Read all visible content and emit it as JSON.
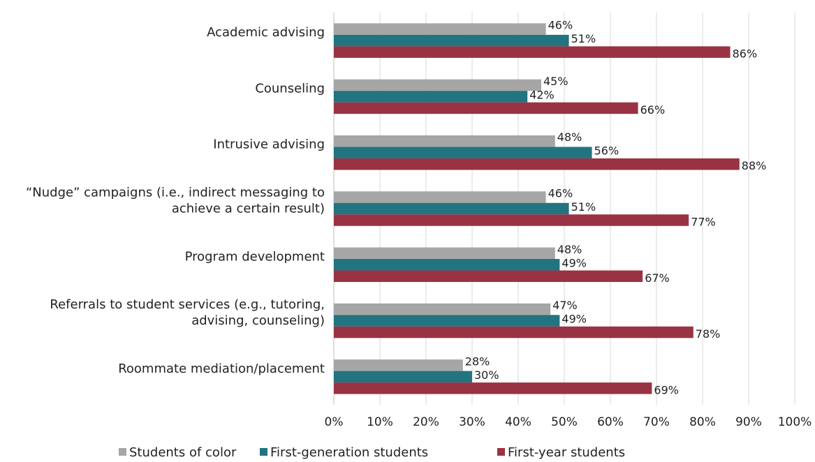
{
  "chart_data": {
    "type": "bar",
    "orientation": "horizontal",
    "categories": [
      [
        "Academic advising"
      ],
      [
        "Counseling"
      ],
      [
        "Intrusive advising"
      ],
      [
        "“Nudge” campaigns (i.e., indirect messaging to",
        "achieve a certain result)"
      ],
      [
        "Program development"
      ],
      [
        "Referrals to student services (e.g., tutoring,",
        "advising, counseling)"
      ],
      [
        "Roommate mediation/placement"
      ]
    ],
    "series": [
      {
        "name": "Students of color",
        "color": "#a6a6a6",
        "values": [
          46,
          45,
          48,
          46,
          48,
          47,
          28
        ]
      },
      {
        "name": "First-generation students",
        "color": "#227480",
        "values": [
          51,
          42,
          56,
          51,
          49,
          49,
          30
        ]
      },
      {
        "name": "First-year students",
        "color": "#993343",
        "values": [
          86,
          66,
          88,
          77,
          67,
          78,
          69
        ]
      }
    ],
    "value_suffix": "%",
    "xlim": [
      0,
      100
    ],
    "xticks": [
      0,
      10,
      20,
      30,
      40,
      50,
      60,
      70,
      80,
      90,
      100
    ],
    "xtick_labels": [
      "0%",
      "10%",
      "20%",
      "30%",
      "40%",
      "50%",
      "60%",
      "70%",
      "80%",
      "90%",
      "100%"
    ],
    "grid": true,
    "legend_position": "bottom",
    "title": "",
    "xlabel": "",
    "ylabel": ""
  }
}
